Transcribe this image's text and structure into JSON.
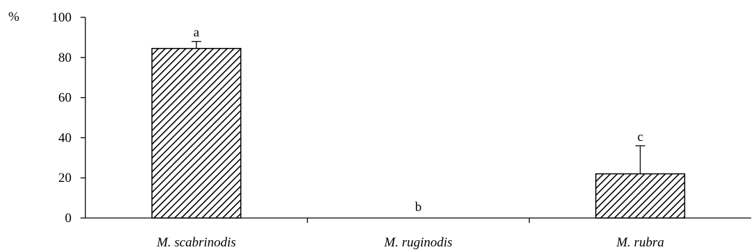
{
  "chart_data": {
    "type": "bar",
    "title": "",
    "xlabel": "",
    "ylabel": "%",
    "ylim": [
      0,
      100
    ],
    "yticks": [
      0,
      20,
      40,
      60,
      80,
      100
    ],
    "grid": false,
    "legend": "none",
    "categories": [
      "M. scabrinodis",
      "M. ruginodis",
      "M. rubra"
    ],
    "values": [
      84.5,
      0,
      22
    ],
    "error_upper": [
      3.5,
      0,
      14
    ],
    "significance_letters": [
      "a",
      "b",
      "c"
    ],
    "bar_fill": "diagonal-hatch",
    "colors": {
      "bar_stroke": "#000000",
      "hatch": "#000000",
      "background": "#ffffff"
    }
  }
}
